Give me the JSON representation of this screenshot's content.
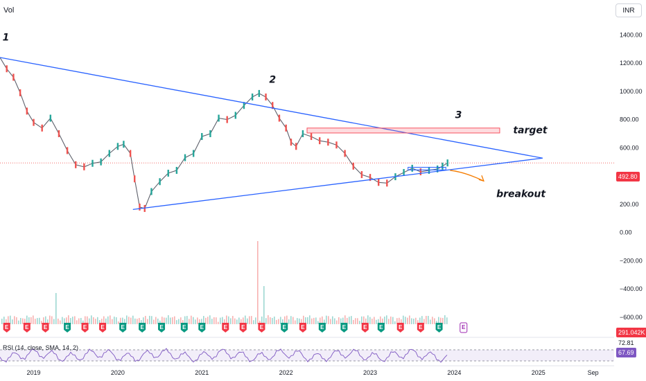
{
  "header": {
    "volume_label": "Vol",
    "currency": "INR"
  },
  "colors": {
    "up": "#26a69a",
    "down": "#ef5350",
    "trendline": "#2962ff",
    "target_box": "#f7525f",
    "breakout_arrow": "#f57c00",
    "rsi_line": "#7e57c2",
    "rsi_band": "#7e57c21a",
    "earnings_past_red": "#f23645",
    "earnings_past_green": "#089981",
    "earnings_future": "#9c27b0"
  },
  "price_badges": {
    "last_price": "492.80",
    "volume": "291.042K",
    "rsi_value": "67.69"
  },
  "chart_data": {
    "type": "line",
    "y_ticks": [
      "1400.00",
      "1200.00",
      "1000.00",
      "800.00",
      "600.00",
      "400.00",
      "200.00",
      "0.00",
      "−200.00",
      "−400.00",
      "−600.00"
    ],
    "x_ticks": [
      "2019",
      "2020",
      "2021",
      "2022",
      "2023",
      "2024",
      "2025",
      "Sep"
    ],
    "ylim": [
      -650,
      1500
    ],
    "xlim": [
      2018.6,
      2025.9
    ],
    "price_series": {
      "x": [
        2018.6,
        2018.68,
        2018.76,
        2018.84,
        2018.92,
        2019.0,
        2019.1,
        2019.2,
        2019.3,
        2019.4,
        2019.5,
        2019.6,
        2019.7,
        2019.8,
        2019.9,
        2020.0,
        2020.07,
        2020.15,
        2020.2,
        2020.26,
        2020.32,
        2020.4,
        2020.5,
        2020.6,
        2020.7,
        2020.8,
        2020.9,
        2021.0,
        2021.1,
        2021.2,
        2021.3,
        2021.4,
        2021.5,
        2021.6,
        2021.68,
        2021.76,
        2021.84,
        2021.92,
        2022.0,
        2022.06,
        2022.12,
        2022.2,
        2022.3,
        2022.4,
        2022.5,
        2022.6,
        2022.7,
        2022.8,
        2022.9,
        2023.0,
        2023.1,
        2023.2,
        2023.3,
        2023.4,
        2023.5,
        2023.6,
        2023.7,
        2023.8,
        2023.86,
        2023.92
      ],
      "y": [
        1240,
        1160,
        1100,
        990,
        860,
        780,
        740,
        810,
        700,
        580,
        480,
        465,
        490,
        500,
        560,
        610,
        625,
        560,
        380,
        180,
        170,
        290,
        360,
        420,
        440,
        530,
        560,
        680,
        700,
        810,
        800,
        830,
        900,
        960,
        985,
        960,
        900,
        810,
        740,
        640,
        610,
        700,
        680,
        650,
        640,
        620,
        560,
        470,
        410,
        390,
        355,
        350,
        395,
        425,
        455,
        430,
        440,
        450,
        470,
        492.8
      ]
    },
    "upper_trendline": {
      "x": [
        2018.6,
        2025.05
      ],
      "y": [
        1240,
        527
      ]
    },
    "lower_trendline": {
      "x": [
        2020.18,
        2025.05
      ],
      "y": [
        163,
        527
      ]
    },
    "target_zone": {
      "x": [
        2022.25,
        2024.54
      ],
      "y": [
        705,
        740
      ]
    },
    "consolidation_box": {
      "x": [
        2023.45,
        2023.9
      ],
      "y": [
        443,
        462
      ]
    },
    "last_price_line": 492.8,
    "annotations": [
      {
        "text": "1",
        "x": 2018.63,
        "y": 1360
      },
      {
        "text": "2",
        "x": 2021.8,
        "y": 1060
      },
      {
        "text": "3",
        "x": 2024.01,
        "y": 810
      },
      {
        "text": "target",
        "x": 2024.7,
        "y": 702
      },
      {
        "text": "breakout",
        "x": 2024.5,
        "y": 250
      }
    ],
    "earnings_markers": {
      "x": [
        2018.68,
        2018.92,
        2019.14,
        2019.4,
        2019.61,
        2019.82,
        2020.06,
        2020.29,
        2020.52,
        2020.79,
        2021.0,
        2021.28,
        2021.49,
        2021.71,
        2021.98,
        2022.2,
        2022.43,
        2022.69,
        2022.94,
        2023.13,
        2023.36,
        2023.6,
        2023.82,
        2024.11
      ],
      "status": [
        "red",
        "red",
        "red",
        "green",
        "red",
        "red",
        "green",
        "green",
        "green",
        "green",
        "green",
        "red",
        "red",
        "red",
        "green",
        "red",
        "green",
        "green",
        "red",
        "green",
        "red",
        "red",
        "green",
        "future"
      ],
      "letter": "E"
    },
    "rsi": {
      "legend": "RSI (14, close, SMA, 14, 2)",
      "upper_band_label": "72.81",
      "value_label": "67.69"
    }
  }
}
